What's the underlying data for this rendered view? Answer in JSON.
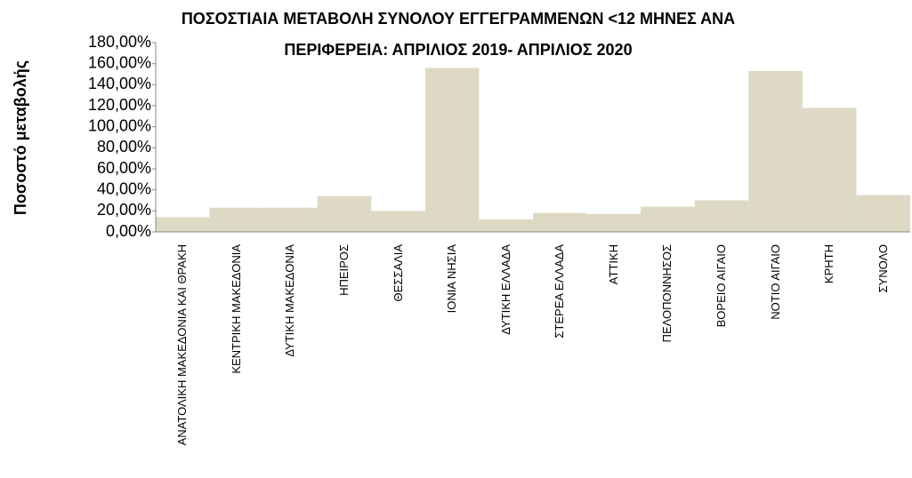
{
  "chart_data": {
    "type": "bar",
    "title": [
      "ΠΟΣΟΣΤΙΑΙΑ ΜΕΤΑΒΟΛΗ   ΣΥΝΟΛΟΥ ΕΓΓΕΓΡΑΜΜΕΝΩΝ <12 ΜΗΝΕΣ ΑΝΑ",
      "ΠΕΡΙΦΕΡΕΙΑ: ΑΠΡΙΛΙΟΣ  2019- ΑΠΡΙΛΙΟΣ 2020"
    ],
    "y_label": "Ποσοστό μεταβολής",
    "categories": [
      "ΑΝΑΤΟΛΙΚΗ ΜΑΚΕΔΟΝΙΑ ΚΑΙ ΘΡΑΚΗ",
      "ΚΕΝΤΡΙΚΗ ΜΑΚΕΔΟΝΙΑ",
      "ΔΥΤΙΚΗ ΜΑΚΕΔΟΝΙΑ",
      "ΗΠΕΙΡΟΣ",
      "ΘΕΣΣΑΛΙΑ",
      "ΙΟΝΙΑ ΝΗΣΙΑ",
      "ΔΥΤΙΚΗ ΕΛΛΑΔΑ",
      "ΣΤΕΡΕΑ ΕΛΛΑΔΑ",
      "ΑΤΤΙΚΗ",
      "ΠΕΛΟΠΟΝΝΗΣΟΣ",
      "ΒΟΡΕΙΟ ΑΙΓΑΙΟ",
      "ΝΟΤΙΟ ΑΙΓΑΙΟ",
      "ΚΡΗΤΗ",
      "ΣΥΝΟΛΟ"
    ],
    "values": [
      14,
      23,
      23,
      34,
      20,
      156,
      12,
      18,
      17,
      24,
      30,
      153,
      118,
      35
    ],
    "color": "#ddd9c4",
    "ylim": [
      0,
      180
    ],
    "yticks": [
      {
        "value": 0,
        "label": "0,00%"
      },
      {
        "value": 20,
        "label": "20,00%"
      },
      {
        "value": 40,
        "label": "40,00%"
      },
      {
        "value": 60,
        "label": "60,00%"
      },
      {
        "value": 80,
        "label": "80,00%"
      },
      {
        "value": 100,
        "label": "100,00%"
      },
      {
        "value": 120,
        "label": "120,00%"
      },
      {
        "value": 140,
        "label": "140,00%"
      },
      {
        "value": 160,
        "label": "160,00%"
      },
      {
        "value": 180,
        "label": "180,00%"
      }
    ],
    "grid": false
  }
}
